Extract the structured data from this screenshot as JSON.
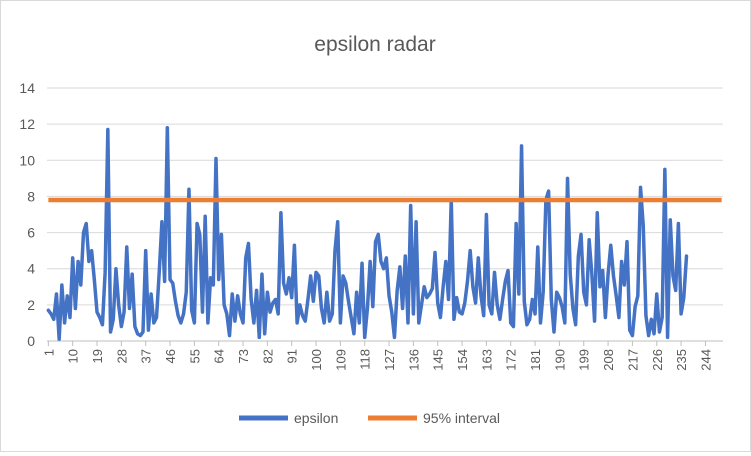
{
  "chart_data": {
    "type": "line",
    "title": "epsilon radar",
    "xlabel": "",
    "ylabel": "",
    "ylim": [
      0,
      14
    ],
    "yticks": [
      0,
      2,
      4,
      6,
      8,
      10,
      12,
      14
    ],
    "x_count": 250,
    "x_tick_labels": [
      "1",
      "10",
      "19",
      "28",
      "37",
      "46",
      "55",
      "64",
      "73",
      "82",
      "91",
      "100",
      "109",
      "118",
      "127",
      "136",
      "145",
      "154",
      "163",
      "172",
      "181",
      "190",
      "199",
      "208",
      "217",
      "226",
      "235",
      "244"
    ],
    "x_tick_step": 9,
    "grid": true,
    "legend_position": "bottom",
    "series": [
      {
        "name": "epsilon",
        "color": "#4472C4",
        "values": [
          1.7,
          1.5,
          1.2,
          2.6,
          0.1,
          3.1,
          1.0,
          2.5,
          1.3,
          4.6,
          1.8,
          4.4,
          3.1,
          6.0,
          6.5,
          4.4,
          5.0,
          3.4,
          1.6,
          1.3,
          0.9,
          3.8,
          11.7,
          0.5,
          1.2,
          4.0,
          2.0,
          0.8,
          1.6,
          5.2,
          1.8,
          3.7,
          0.8,
          0.4,
          0.3,
          0.5,
          5.0,
          0.6,
          2.6,
          1.0,
          1.3,
          3.8,
          6.6,
          3.3,
          11.8,
          3.4,
          3.2,
          2.2,
          1.4,
          1.0,
          1.5,
          2.7,
          8.4,
          1.7,
          1.0,
          6.5,
          5.9,
          1.6,
          6.9,
          1.0,
          3.5,
          3.1,
          10.1,
          3.4,
          5.9,
          2.0,
          1.5,
          0.3,
          2.6,
          1.1,
          2.5,
          1.5,
          1.0,
          4.6,
          5.4,
          2.3,
          1.0,
          2.8,
          0.2,
          3.7,
          0.4,
          2.7,
          1.6,
          2.1,
          2.3,
          1.5,
          7.1,
          3.2,
          2.6,
          3.5,
          2.4,
          5.3,
          1.0,
          2.0,
          1.4,
          1.1,
          2.3,
          3.6,
          2.2,
          3.8,
          3.6,
          1.8,
          1.0,
          2.7,
          1.1,
          1.5,
          5.0,
          6.6,
          1.0,
          3.6,
          3.2,
          2.2,
          1.3,
          0.4,
          2.7,
          1.0,
          4.3,
          0.2,
          1.8,
          4.4,
          1.9,
          5.5,
          5.9,
          4.4,
          4.0,
          4.6,
          2.5,
          1.6,
          0.2,
          2.8,
          4.1,
          1.8,
          4.7,
          1.0,
          7.5,
          1.5,
          6.6,
          1.0,
          2.0,
          3.0,
          2.4,
          2.6,
          2.9,
          4.9,
          2.1,
          1.3,
          3.0,
          4.4,
          2.3,
          7.8,
          1.2,
          2.4,
          1.6,
          1.5,
          2.1,
          3.3,
          5.0,
          3.0,
          2.1,
          4.6,
          2.5,
          1.4,
          7.0,
          2.0,
          1.5,
          3.8,
          2.0,
          1.2,
          2.3,
          3.3,
          3.9,
          1.0,
          0.8,
          6.5,
          2.6,
          10.8,
          2.2,
          0.9,
          1.2,
          2.3,
          1.5,
          5.2,
          1.0,
          2.7,
          7.8,
          8.3,
          2.3,
          0.5,
          2.7,
          2.4,
          1.9,
          1.0,
          9.0,
          3.7,
          1.8,
          0.9,
          4.7,
          5.9,
          2.7,
          2.0,
          5.6,
          3.7,
          1.1,
          7.1,
          3.0,
          3.9,
          1.3,
          3.7,
          5.3,
          3.6,
          2.5,
          1.3,
          4.4,
          3.1,
          5.5,
          0.6,
          0.3,
          1.9,
          2.5,
          8.5,
          6.4,
          1.4,
          0.3,
          1.2,
          0.4,
          2.6,
          0.5,
          1.3,
          9.5,
          0.2,
          6.7,
          3.6,
          2.8,
          6.5,
          1.5,
          2.4,
          4.7
        ]
      },
      {
        "name": "95% interval",
        "color": "#ED7D31",
        "constant": 7.8
      }
    ]
  }
}
